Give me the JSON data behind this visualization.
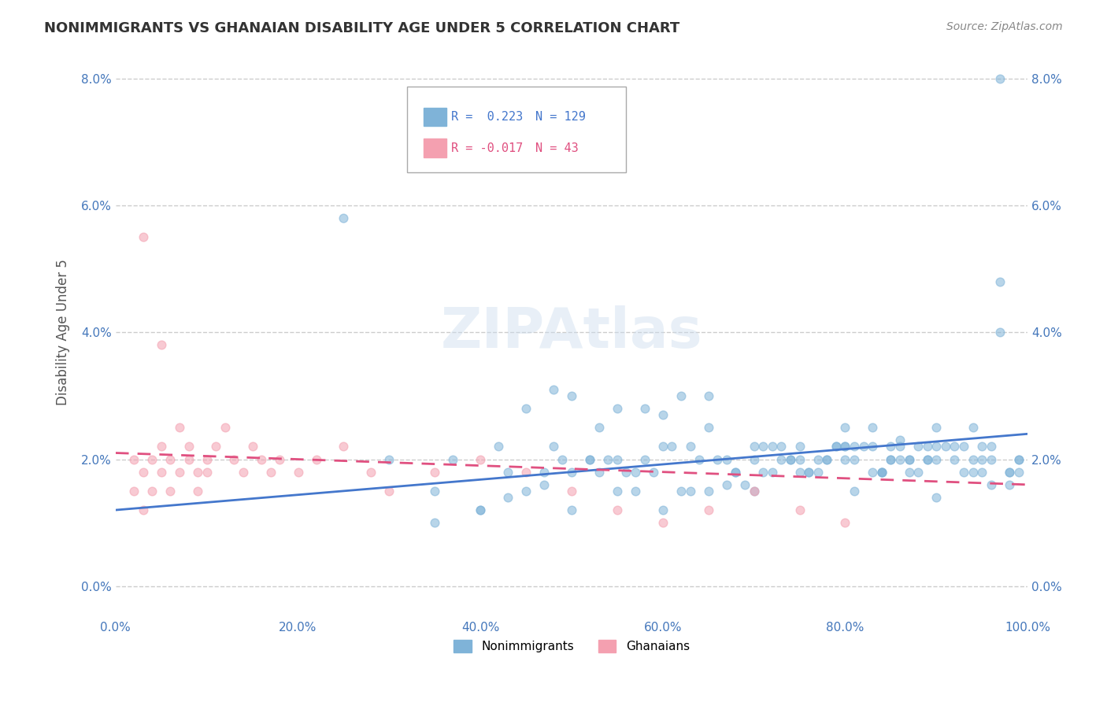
{
  "title": "NONIMMIGRANTS VS GHANAIAN DISABILITY AGE UNDER 5 CORRELATION CHART",
  "source": "Source: ZipAtlas.com",
  "xlabel_label": "",
  "ylabel_label": "Disability Age Under 5",
  "xlim": [
    0.0,
    1.0
  ],
  "ylim": [
    -0.005,
    0.085
  ],
  "xticks": [
    0.0,
    0.2,
    0.4,
    0.6,
    0.8,
    1.0
  ],
  "xticklabels": [
    "0.0%",
    "20.0%",
    "40.0%",
    "60.0%",
    "80.0%",
    "100.0%"
  ],
  "yticks": [
    0.0,
    0.02,
    0.04,
    0.06,
    0.08
  ],
  "yticklabels": [
    "0.0%",
    "2.0%",
    "4.0%",
    "6.0%",
    "8.0%"
  ],
  "legend_entries": [
    {
      "label": "Nonimmigrants",
      "R": 0.223,
      "N": 129,
      "color": "#a8c4e0"
    },
    {
      "label": "Ghanaians",
      "R": -0.017,
      "N": 43,
      "color": "#f4a9b8"
    }
  ],
  "blue_scatter_x": [
    0.97,
    0.25,
    0.5,
    0.45,
    0.48,
    0.55,
    0.6,
    0.65,
    0.7,
    0.72,
    0.75,
    0.78,
    0.8,
    0.82,
    0.83,
    0.85,
    0.86,
    0.87,
    0.88,
    0.89,
    0.9,
    0.91,
    0.92,
    0.93,
    0.94,
    0.95,
    0.96,
    0.97,
    0.98,
    0.99,
    0.62,
    0.58,
    0.52,
    0.68,
    0.74,
    0.76,
    0.79,
    0.81,
    0.84,
    0.88,
    0.35,
    0.4,
    0.43,
    0.47,
    0.53,
    0.57,
    0.63,
    0.67,
    0.71,
    0.73,
    0.77,
    0.8,
    0.83,
    0.86,
    0.89,
    0.92,
    0.94,
    0.96,
    0.98,
    0.99,
    0.55,
    0.6,
    0.65,
    0.7,
    0.75,
    0.8,
    0.85,
    0.9,
    0.95,
    0.97,
    0.5,
    0.54,
    0.59,
    0.64,
    0.69,
    0.74,
    0.79,
    0.84,
    0.89,
    0.94,
    0.3,
    0.35,
    0.4,
    0.45,
    0.5,
    0.55,
    0.6,
    0.65,
    0.7,
    0.75,
    0.8,
    0.85,
    0.9,
    0.95,
    0.98,
    0.99,
    0.87,
    0.83,
    0.78,
    0.72,
    0.67,
    0.62,
    0.57,
    0.52,
    0.47,
    0.42,
    0.37,
    0.48,
    0.53,
    0.58,
    0.63,
    0.68,
    0.73,
    0.77,
    0.81,
    0.84,
    0.87,
    0.9,
    0.93,
    0.96,
    0.43,
    0.49,
    0.56,
    0.61,
    0.66,
    0.71,
    0.76,
    0.81,
    0.86
  ],
  "blue_scatter_y": [
    0.08,
    0.058,
    0.03,
    0.028,
    0.031,
    0.028,
    0.027,
    0.03,
    0.02,
    0.022,
    0.022,
    0.02,
    0.025,
    0.022,
    0.018,
    0.02,
    0.023,
    0.02,
    0.018,
    0.02,
    0.02,
    0.022,
    0.02,
    0.022,
    0.02,
    0.018,
    0.022,
    0.048,
    0.018,
    0.02,
    0.03,
    0.028,
    0.02,
    0.018,
    0.02,
    0.018,
    0.022,
    0.02,
    0.018,
    0.022,
    0.015,
    0.012,
    0.014,
    0.016,
    0.018,
    0.015,
    0.015,
    0.02,
    0.018,
    0.022,
    0.02,
    0.022,
    0.025,
    0.022,
    0.02,
    0.022,
    0.018,
    0.02,
    0.016,
    0.018,
    0.02,
    0.022,
    0.025,
    0.022,
    0.02,
    0.022,
    0.02,
    0.022,
    0.02,
    0.04,
    0.018,
    0.02,
    0.018,
    0.02,
    0.016,
    0.02,
    0.022,
    0.018,
    0.022,
    0.025,
    0.02,
    0.01,
    0.012,
    0.015,
    0.012,
    0.015,
    0.012,
    0.015,
    0.015,
    0.018,
    0.02,
    0.022,
    0.025,
    0.022,
    0.018,
    0.02,
    0.018,
    0.022,
    0.02,
    0.018,
    0.016,
    0.015,
    0.018,
    0.02,
    0.018,
    0.022,
    0.02,
    0.022,
    0.025,
    0.02,
    0.022,
    0.018,
    0.02,
    0.018,
    0.022,
    0.018,
    0.02,
    0.014,
    0.018,
    0.016,
    0.018,
    0.02,
    0.018,
    0.022,
    0.02,
    0.022,
    0.018,
    0.015,
    0.02
  ],
  "pink_scatter_x": [
    0.02,
    0.02,
    0.03,
    0.03,
    0.04,
    0.04,
    0.05,
    0.05,
    0.06,
    0.06,
    0.07,
    0.07,
    0.08,
    0.08,
    0.09,
    0.09,
    0.1,
    0.1,
    0.11,
    0.12,
    0.13,
    0.14,
    0.15,
    0.16,
    0.17,
    0.18,
    0.2,
    0.22,
    0.25,
    0.28,
    0.3,
    0.35,
    0.4,
    0.45,
    0.5,
    0.55,
    0.6,
    0.65,
    0.7,
    0.75,
    0.8,
    0.03,
    0.05
  ],
  "pink_scatter_y": [
    0.02,
    0.015,
    0.018,
    0.012,
    0.015,
    0.02,
    0.018,
    0.022,
    0.02,
    0.015,
    0.018,
    0.025,
    0.02,
    0.022,
    0.018,
    0.015,
    0.02,
    0.018,
    0.022,
    0.025,
    0.02,
    0.018,
    0.022,
    0.02,
    0.018,
    0.02,
    0.018,
    0.02,
    0.022,
    0.018,
    0.015,
    0.018,
    0.02,
    0.018,
    0.015,
    0.012,
    0.01,
    0.012,
    0.015,
    0.012,
    0.01,
    0.055,
    0.038
  ],
  "blue_trend_x": [
    0.0,
    1.0
  ],
  "blue_trend_y": [
    0.012,
    0.024
  ],
  "pink_trend_x": [
    0.0,
    1.0
  ],
  "pink_trend_y": [
    0.021,
    0.016
  ],
  "watermark": "ZIPAtlas",
  "scatter_alpha": 0.55,
  "scatter_size": 60,
  "grid_color": "#cccccc",
  "grid_style": "--",
  "background_color": "#ffffff",
  "title_color": "#333333",
  "axis_label_color": "#555555",
  "tick_color_x": "#4477bb",
  "tick_color_y": "#4477bb",
  "blue_color": "#7fb3d8",
  "pink_color": "#f4a0b0",
  "blue_line_color": "#4477cc",
  "pink_line_color": "#e05080",
  "pink_line_dash": [
    6,
    4
  ]
}
